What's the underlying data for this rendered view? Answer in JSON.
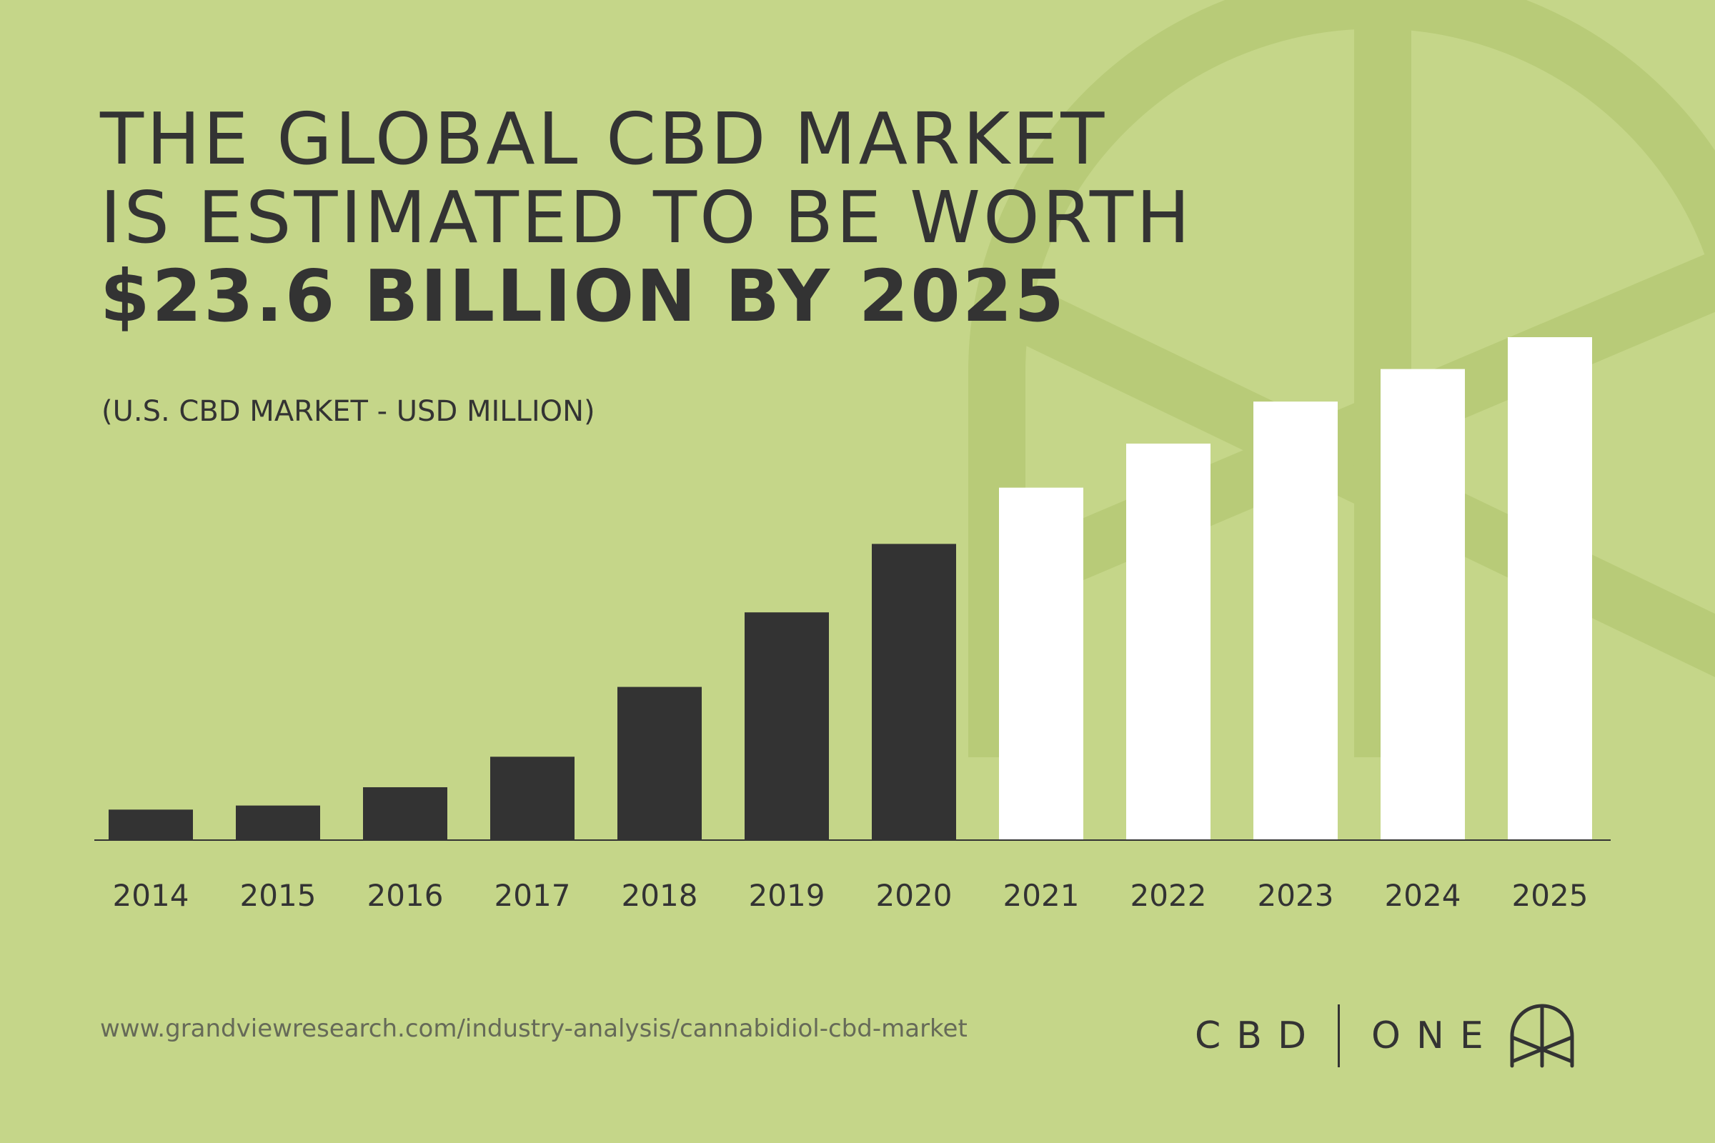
{
  "headline": {
    "line1": "THE GLOBAL CBD MARKET",
    "line2": "IS ESTIMATED TO BE WORTH",
    "line3": "$23.6 BILLION BY 2025"
  },
  "subtitle": "(U.S. CBD MARKET - USD MILLION)",
  "source": "www.grandviewresearch.com/industry-analysis/cannabidiol-cbd-market",
  "brand": {
    "left": "CBD",
    "right": "ONE",
    "logo_icon": "cbd-one-logo-icon"
  },
  "colors": {
    "background": "#c5d689",
    "actual": "#333333",
    "forecast": "#ffffff",
    "text": "#333333",
    "motif": "#b8cb78"
  },
  "chart_data": {
    "type": "bar",
    "title": "",
    "xlabel": "",
    "ylabel": "",
    "categories": [
      "2014",
      "2015",
      "2016",
      "2017",
      "2018",
      "2019",
      "2020",
      "2021",
      "2022",
      "2023",
      "2024",
      "2025"
    ],
    "values": [
      45,
      51,
      78,
      123,
      226,
      336,
      437,
      520,
      585,
      647,
      695,
      742
    ],
    "value_kinds": [
      "actual",
      "actual",
      "actual",
      "actual",
      "actual",
      "actual",
      "actual",
      "forecast",
      "forecast",
      "forecast",
      "forecast",
      "forecast"
    ],
    "ylim": [
      0,
      742
    ],
    "grid": false,
    "legend": "none"
  }
}
